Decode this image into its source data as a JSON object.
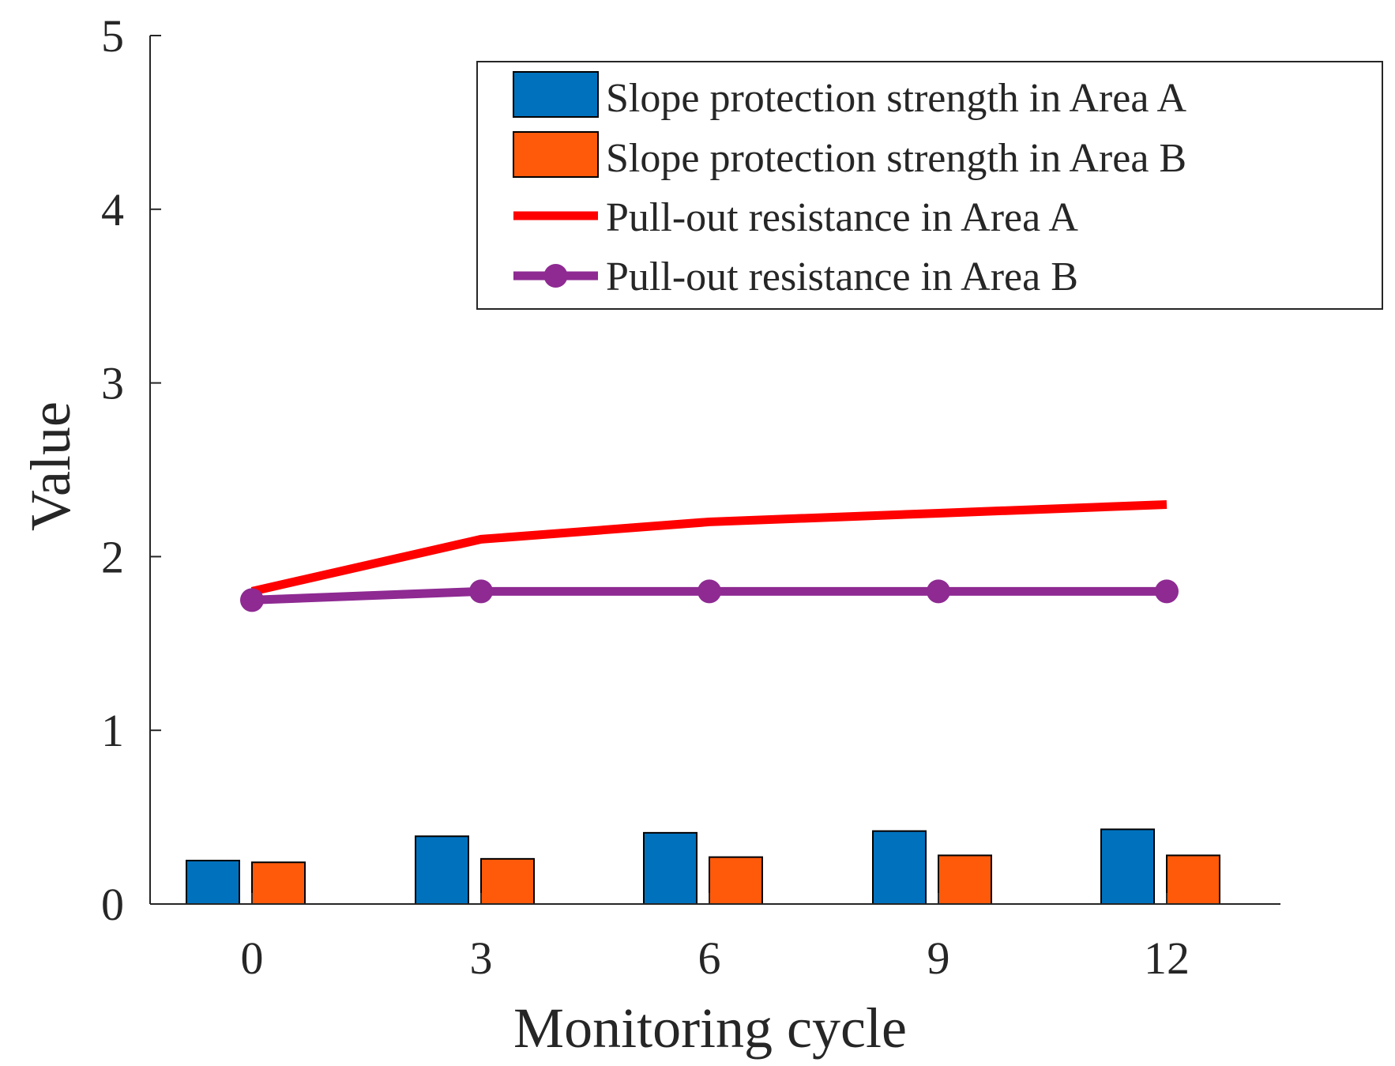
{
  "chart_data": {
    "type": "bar",
    "title": "",
    "xlabel": "Monitoring cycle",
    "ylabel": "Value",
    "ylim": [
      0,
      5
    ],
    "yticks": [
      0,
      1,
      2,
      3,
      4,
      5
    ],
    "categories": [
      "0",
      "3",
      "6",
      "9",
      "12"
    ],
    "x": [
      0,
      3,
      6,
      9,
      12
    ],
    "grid": false,
    "legend_position": "top-right",
    "series": [
      {
        "name": "Slope protection strength in Area A",
        "kind": "bar",
        "color": "#0072BD",
        "values": [
          0.25,
          0.39,
          0.41,
          0.42,
          0.43
        ]
      },
      {
        "name": "Slope protection strength in Area B",
        "kind": "bar",
        "color": "#FF5A0A",
        "values": [
          0.24,
          0.26,
          0.27,
          0.28,
          0.28
        ]
      },
      {
        "name": "Pull-out resistance in Area A",
        "kind": "line",
        "color": "#FF0000",
        "marker": "none",
        "values": [
          1.8,
          2.1,
          2.2,
          2.25,
          2.3
        ]
      },
      {
        "name": "Pull-out resistance in Area B",
        "kind": "line",
        "color": "#8E2A92",
        "marker": "circle",
        "values": [
          1.75,
          1.8,
          1.8,
          1.8,
          1.8
        ]
      }
    ]
  }
}
